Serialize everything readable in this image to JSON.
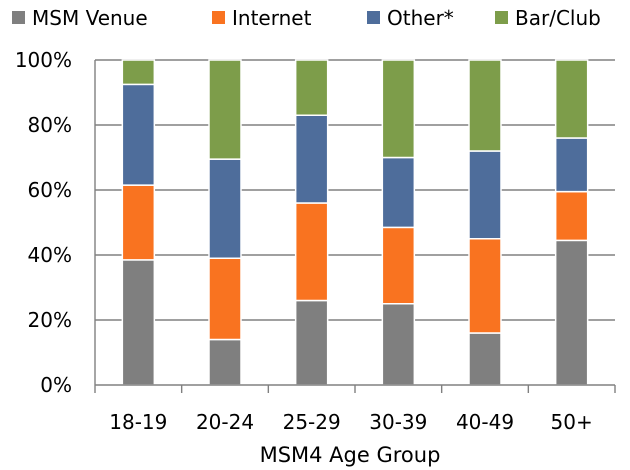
{
  "chart_data": {
    "type": "bar",
    "stacked": true,
    "percent_stacked": true,
    "categories": [
      "18-19",
      "20-24",
      "25-29",
      "30-39",
      "40-49",
      "50+"
    ],
    "series": [
      {
        "name": "MSM Venue",
        "color": "#7f7f7f",
        "values": [
          38.5,
          14,
          26,
          25,
          16,
          44.5
        ]
      },
      {
        "name": "Internet",
        "color": "#f97320",
        "values": [
          23,
          25,
          30,
          23.5,
          29,
          15
        ]
      },
      {
        "name": "Other*",
        "color": "#4e6d9b",
        "values": [
          31,
          30.5,
          27,
          21.5,
          27,
          16.5
        ]
      },
      {
        "name": "Bar/Club",
        "color": "#7d9d4a",
        "values": [
          7.5,
          30.5,
          17,
          30,
          28,
          24
        ]
      }
    ],
    "xlabel": "MSM4 Age Group",
    "ylabel": "",
    "ylim": [
      0,
      100
    ],
    "yticks": [
      "0%",
      "20%",
      "40%",
      "60%",
      "80%",
      "100%"
    ],
    "grid": true,
    "legend_position": "top"
  }
}
